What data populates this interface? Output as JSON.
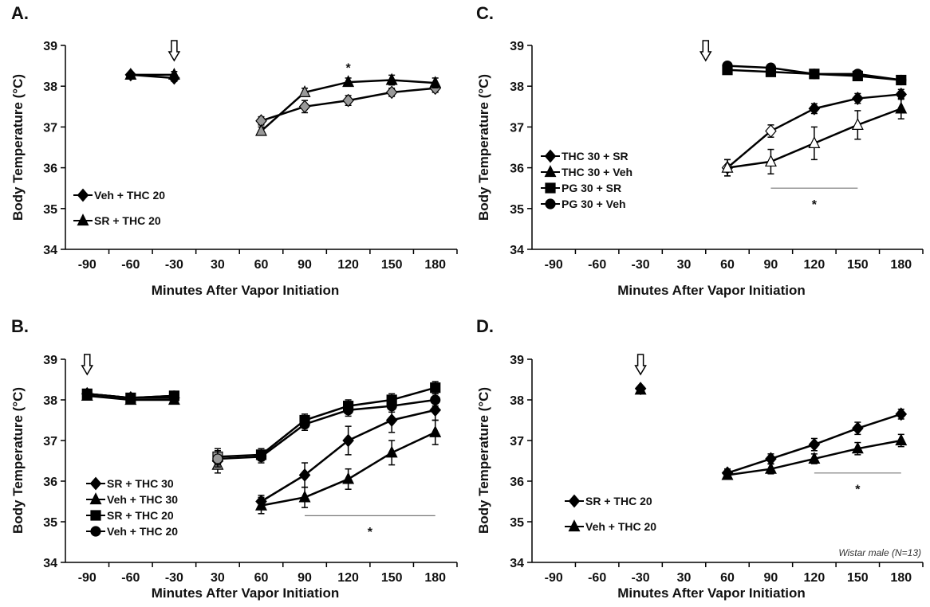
{
  "x_labels": [
    "-90",
    "-60",
    "-30",
    "30",
    "60",
    "90",
    "120",
    "150",
    "180"
  ],
  "chart_data": [
    {
      "panel": "A.",
      "type": "line",
      "ylabel": "Body Temperature (°C)",
      "xlabel": "Minutes After Vapor Initiation",
      "ylim": [
        34,
        39
      ],
      "yticks": [
        34,
        35,
        36,
        37,
        38,
        39
      ],
      "categories": [
        "-90",
        "-60",
        "-30",
        "30",
        "60",
        "90",
        "120",
        "150",
        "180"
      ],
      "arrows": [
        "-30"
      ],
      "star_points": [
        {
          "x": "120",
          "y": 38.5
        }
      ],
      "sig_bar": null,
      "legend_position": "bottom-left",
      "note": "",
      "series": [
        {
          "name": "Veh + THC 20",
          "marker": "diamond",
          "color": "#000000",
          "segments": [
            [
              {
                "x": "-60",
                "y": 38.28,
                "e": 0.06
              },
              {
                "x": "-30",
                "y": 38.2,
                "e": 0.08
              }
            ],
            [
              {
                "x": "60",
                "y": 37.15,
                "e": 0.1,
                "c": "#999999"
              },
              {
                "x": "90",
                "y": 37.5,
                "e": 0.15,
                "c": "#999999"
              },
              {
                "x": "120",
                "y": 37.65,
                "e": 0.12,
                "c": "#999999"
              },
              {
                "x": "150",
                "y": 37.85,
                "e": 0.1,
                "c": "#999999"
              },
              {
                "x": "180",
                "y": 37.95,
                "e": 0.1,
                "c": "#999999"
              }
            ]
          ]
        },
        {
          "name": "SR + THC 20",
          "marker": "triangle",
          "color": "#000000",
          "segments": [
            [
              {
                "x": "-60",
                "y": 38.28,
                "e": 0.06
              },
              {
                "x": "-30",
                "y": 38.28,
                "e": 0.08
              }
            ],
            [
              {
                "x": "60",
                "y": 36.9,
                "e": 0.1,
                "c": "#999999"
              },
              {
                "x": "90",
                "y": 37.85,
                "e": 0.1,
                "c": "#999999"
              },
              {
                "x": "120",
                "y": 38.1,
                "e": 0.1
              },
              {
                "x": "150",
                "y": 38.15,
                "e": 0.12
              },
              {
                "x": "180",
                "y": 38.08,
                "e": 0.12
              }
            ]
          ]
        }
      ]
    },
    {
      "panel": "C.",
      "type": "line",
      "ylabel": "Body Temperature (°C)",
      "xlabel": "Minutes After Vapor Initiation",
      "ylim": [
        34,
        39
      ],
      "yticks": [
        34,
        35,
        36,
        37,
        38,
        39
      ],
      "categories": [
        "-90",
        "-60",
        "-30",
        "30",
        "60",
        "90",
        "120",
        "150",
        "180"
      ],
      "arrows": [
        "45"
      ],
      "star_points": [],
      "sig_bar": {
        "from": "90",
        "to": "150",
        "y": 35.5,
        "star_y": 35.15
      },
      "legend_position": "bottom-left",
      "note": "",
      "series": [
        {
          "name": "THC 30 + SR",
          "marker": "diamond",
          "color": "#000000",
          "segments": [
            [
              {
                "x": "60",
                "y": 36.0,
                "e": 0.2,
                "c": "#ffffff"
              },
              {
                "x": "90",
                "y": 36.9,
                "e": 0.15,
                "c": "#ffffff"
              },
              {
                "x": "120",
                "y": 37.45,
                "e": 0.12
              },
              {
                "x": "150",
                "y": 37.7,
                "e": 0.12
              },
              {
                "x": "180",
                "y": 37.8,
                "e": 0.12
              }
            ]
          ]
        },
        {
          "name": "THC 30 + Veh",
          "marker": "triangle",
          "color": "#000000",
          "segments": [
            [
              {
                "x": "60",
                "y": 36.0,
                "e": 0.2,
                "c": "#ffffff"
              },
              {
                "x": "90",
                "y": 36.15,
                "e": 0.3,
                "c": "#ffffff"
              },
              {
                "x": "120",
                "y": 36.6,
                "e": 0.4,
                "c": "#ffffff"
              },
              {
                "x": "150",
                "y": 37.05,
                "e": 0.35,
                "c": "#ffffff"
              },
              {
                "x": "180",
                "y": 37.45,
                "e": 0.25
              }
            ]
          ]
        },
        {
          "name": "PG 30 + SR",
          "marker": "square",
          "color": "#000000",
          "segments": [
            [
              {
                "x": "60",
                "y": 38.4,
                "e": 0.08
              },
              {
                "x": "90",
                "y": 38.35,
                "e": 0.08
              },
              {
                "x": "120",
                "y": 38.3,
                "e": 0.08
              },
              {
                "x": "150",
                "y": 38.25,
                "e": 0.08
              },
              {
                "x": "180",
                "y": 38.15,
                "e": 0.08
              }
            ]
          ]
        },
        {
          "name": "PG 30 + Veh",
          "marker": "circle",
          "color": "#000000",
          "segments": [
            [
              {
                "x": "60",
                "y": 38.5,
                "e": 0.08
              },
              {
                "x": "90",
                "y": 38.45,
                "e": 0.08
              },
              {
                "x": "120",
                "y": 38.3,
                "e": 0.08
              },
              {
                "x": "150",
                "y": 38.3,
                "e": 0.08
              },
              {
                "x": "180",
                "y": 38.15,
                "e": 0.08
              }
            ]
          ]
        }
      ]
    },
    {
      "panel": "B.",
      "type": "line",
      "ylabel": "Body Temperature (°C)",
      "xlabel": "Minutes After Vapor Initiation",
      "ylim": [
        34,
        39
      ],
      "yticks": [
        34,
        35,
        36,
        37,
        38,
        39
      ],
      "categories": [
        "-90",
        "-60",
        "-30",
        "30",
        "60",
        "90",
        "120",
        "150",
        "180"
      ],
      "arrows": [
        "-90"
      ],
      "star_points": [],
      "sig_bar": {
        "from": "90",
        "to": "180",
        "y": 35.15,
        "star_y": 34.8
      },
      "legend_position": "bottom-left",
      "note": "",
      "series": [
        {
          "name": "SR + THC 30",
          "marker": "diamond",
          "color": "#000000",
          "segments": [
            [
              {
                "x": "-90",
                "y": 38.15,
                "e": 0.08
              },
              {
                "x": "-60",
                "y": 38.05,
                "e": 0.1
              },
              {
                "x": "-30",
                "y": 38.05,
                "e": 0.1
              }
            ],
            [
              {
                "x": "30",
                "y": 36.5,
                "e": 0.2,
                "c": "#999999"
              }
            ],
            [
              {
                "x": "60",
                "y": 35.5,
                "e": 0.15
              },
              {
                "x": "90",
                "y": 36.15,
                "e": 0.3
              },
              {
                "x": "120",
                "y": 37.0,
                "e": 0.35
              },
              {
                "x": "150",
                "y": 37.5,
                "e": 0.3
              },
              {
                "x": "180",
                "y": 37.75,
                "e": 0.25
              }
            ]
          ]
        },
        {
          "name": "Veh + THC 30",
          "marker": "triangle",
          "color": "#000000",
          "segments": [
            [
              {
                "x": "-90",
                "y": 38.1,
                "e": 0.08
              },
              {
                "x": "-60",
                "y": 38.0,
                "e": 0.1
              },
              {
                "x": "-30",
                "y": 38.0,
                "e": 0.1
              }
            ],
            [
              {
                "x": "30",
                "y": 36.4,
                "e": 0.2,
                "c": "#999999"
              }
            ],
            [
              {
                "x": "60",
                "y": 35.4,
                "e": 0.2
              },
              {
                "x": "90",
                "y": 35.6,
                "e": 0.25
              },
              {
                "x": "120",
                "y": 36.05,
                "e": 0.25
              },
              {
                "x": "150",
                "y": 36.7,
                "e": 0.3
              },
              {
                "x": "180",
                "y": 37.2,
                "e": 0.3
              }
            ]
          ]
        },
        {
          "name": "SR + THC 20",
          "marker": "square",
          "color": "#000000",
          "segments": [
            [
              {
                "x": "-90",
                "y": 38.15,
                "e": 0.08
              },
              {
                "x": "-60",
                "y": 38.05,
                "e": 0.1
              },
              {
                "x": "-30",
                "y": 38.1,
                "e": 0.1
              }
            ],
            [
              {
                "x": "30",
                "y": 36.6,
                "e": 0.2,
                "c": "#999999"
              },
              {
                "x": "60",
                "y": 36.65,
                "e": 0.15
              },
              {
                "x": "90",
                "y": 37.5,
                "e": 0.15
              },
              {
                "x": "120",
                "y": 37.85,
                "e": 0.15
              },
              {
                "x": "150",
                "y": 38.0,
                "e": 0.15
              },
              {
                "x": "180",
                "y": 38.3,
                "e": 0.15
              }
            ]
          ]
        },
        {
          "name": "Veh + THC 20",
          "marker": "circle",
          "color": "#000000",
          "segments": [
            [
              {
                "x": "-90",
                "y": 38.15,
                "e": 0.08
              },
              {
                "x": "-60",
                "y": 38.05,
                "e": 0.1
              },
              {
                "x": "-30",
                "y": 38.1,
                "e": 0.1
              }
            ],
            [
              {
                "x": "30",
                "y": 36.55,
                "e": 0.2,
                "c": "#999999"
              },
              {
                "x": "60",
                "y": 36.6,
                "e": 0.15
              },
              {
                "x": "90",
                "y": 37.4,
                "e": 0.15
              },
              {
                "x": "120",
                "y": 37.75,
                "e": 0.15
              },
              {
                "x": "150",
                "y": 37.85,
                "e": 0.15
              },
              {
                "x": "180",
                "y": 38.0,
                "e": 0.15
              }
            ]
          ]
        }
      ]
    },
    {
      "panel": "D.",
      "type": "line",
      "ylabel": "Body Temperature (°C)",
      "xlabel": "Minutes After Vapor Initiation",
      "ylim": [
        34,
        39
      ],
      "yticks": [
        34,
        35,
        36,
        37,
        38,
        39
      ],
      "categories": [
        "-90",
        "-60",
        "-30",
        "30",
        "60",
        "90",
        "120",
        "150",
        "180"
      ],
      "arrows": [
        "-30"
      ],
      "star_points": [],
      "sig_bar": {
        "from": "120",
        "to": "180",
        "y": 36.2,
        "star_y": 35.85
      },
      "legend_position": "bottom-left",
      "note": "Wistar male (N=13)",
      "series": [
        {
          "name": "SR + THC 20",
          "marker": "diamond",
          "color": "#000000",
          "segments": [
            [
              {
                "x": "-30",
                "y": 38.28,
                "e": 0.05
              }
            ],
            [
              {
                "x": "60",
                "y": 36.2,
                "e": 0.1
              },
              {
                "x": "90",
                "y": 36.55,
                "e": 0.12
              },
              {
                "x": "120",
                "y": 36.9,
                "e": 0.15
              },
              {
                "x": "150",
                "y": 37.3,
                "e": 0.15
              },
              {
                "x": "180",
                "y": 37.65,
                "e": 0.12
              }
            ]
          ]
        },
        {
          "name": "Veh + THC 20",
          "marker": "triangle",
          "color": "#000000",
          "segments": [
            [
              {
                "x": "-30",
                "y": 38.25,
                "e": 0.05
              }
            ],
            [
              {
                "x": "60",
                "y": 36.15,
                "e": 0.1
              },
              {
                "x": "90",
                "y": 36.3,
                "e": 0.12
              },
              {
                "x": "120",
                "y": 36.55,
                "e": 0.12
              },
              {
                "x": "150",
                "y": 36.8,
                "e": 0.15
              },
              {
                "x": "180",
                "y": 37.0,
                "e": 0.15
              }
            ]
          ]
        }
      ]
    }
  ]
}
